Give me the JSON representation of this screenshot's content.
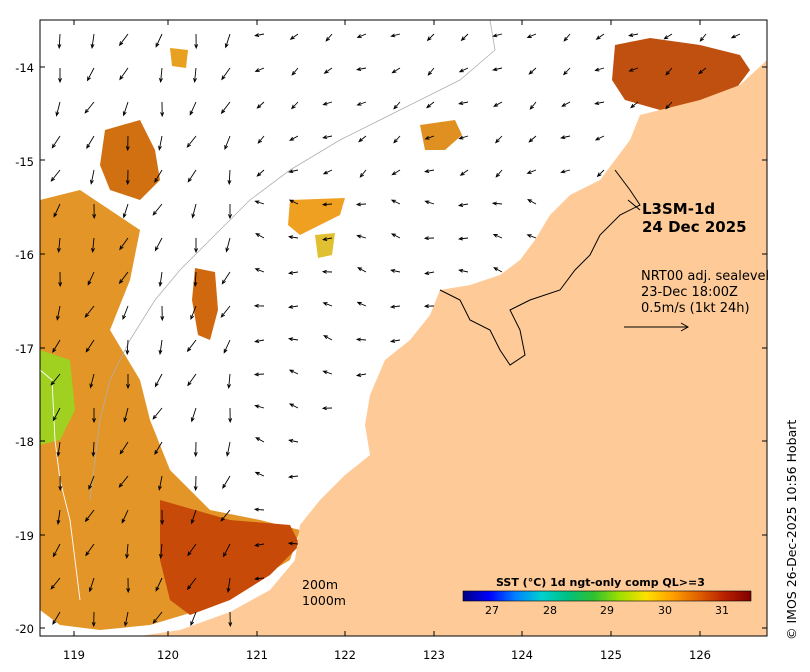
{
  "title_block": {
    "product": "L3SM-1d",
    "date": "24 Dec 2025"
  },
  "vector_info": {
    "line1": "NRT00 adj. sealevel",
    "line2": "23-Dec 18:00Z",
    "line3": "0.5m/s (1kt 24h)"
  },
  "depth_contours": [
    "200m",
    "1000m"
  ],
  "axes": {
    "y_ticks": [
      "-14",
      "-15",
      "-16",
      "-17",
      "-18",
      "-19",
      "-20"
    ],
    "x_ticks": [
      "119",
      "120",
      "121",
      "122",
      "123",
      "124",
      "125",
      "126"
    ]
  },
  "colorbar": {
    "title": "SST (°C) 1d ngt-only comp QL>=3",
    "ticks": [
      "27",
      "28",
      "29",
      "30",
      "31"
    ],
    "range": [
      26.6,
      31.6
    ],
    "colors": [
      "#00007f",
      "#0000ff",
      "#0080ff",
      "#00d0d0",
      "#00c080",
      "#30c030",
      "#a0e000",
      "#ffe000",
      "#ffa000",
      "#e06000",
      "#b82000",
      "#800000"
    ]
  },
  "colors": {
    "land": "#fecb98",
    "frame": "#000000"
  },
  "credit": "© IMOS 26-Dec-2025 10:56 Hobart"
}
